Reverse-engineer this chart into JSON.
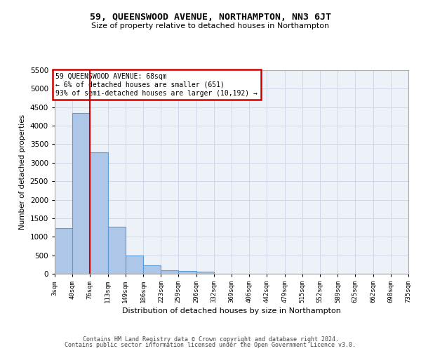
{
  "title": "59, QUEENSWOOD AVENUE, NORTHAMPTON, NN3 6JT",
  "subtitle": "Size of property relative to detached houses in Northampton",
  "xlabel": "Distribution of detached houses by size in Northampton",
  "ylabel": "Number of detached properties",
  "annotation_line1": "59 QUEENSWOOD AVENUE: 68sqm",
  "annotation_line2": "← 6% of detached houses are smaller (651)",
  "annotation_line3": "93% of semi-detached houses are larger (10,192) →",
  "footer1": "Contains HM Land Registry data © Crown copyright and database right 2024.",
  "footer2": "Contains public sector information licensed under the Open Government Licence v3.0.",
  "bin_labels": [
    "3sqm",
    "40sqm",
    "76sqm",
    "113sqm",
    "149sqm",
    "186sqm",
    "223sqm",
    "259sqm",
    "296sqm",
    "332sqm",
    "369sqm",
    "406sqm",
    "442sqm",
    "479sqm",
    "515sqm",
    "552sqm",
    "589sqm",
    "625sqm",
    "662sqm",
    "698sqm",
    "735sqm"
  ],
  "bar_values": [
    1230,
    4350,
    3280,
    1270,
    490,
    220,
    95,
    70,
    60,
    0,
    0,
    0,
    0,
    0,
    0,
    0,
    0,
    0,
    0,
    0
  ],
  "bar_color": "#aec6e8",
  "bar_edge_color": "#5b9bd5",
  "vline_x_idx": 1,
  "vline_color": "#cc0000",
  "ylim_max": 5500,
  "yticks": [
    0,
    500,
    1000,
    1500,
    2000,
    2500,
    3000,
    3500,
    4000,
    4500,
    5000,
    5500
  ],
  "annotation_box_color": "#cc0000",
  "grid_color": "#d0d8e8",
  "bg_color": "#edf2f9"
}
